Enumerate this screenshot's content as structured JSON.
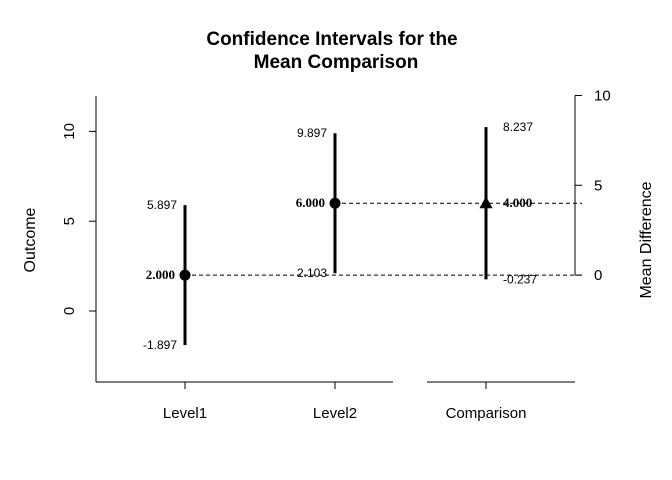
{
  "chart_data": {
    "type": "scatter",
    "title_lines": [
      "Confidence Intervals for the",
      "Mean Comparison"
    ],
    "ylabel_left": "Outcome",
    "ylabel_right": "Mean Difference",
    "ylim_left": [
      -4,
      12
    ],
    "left_ticks": [
      0,
      5,
      10
    ],
    "right_ticks": [
      0,
      5,
      10
    ],
    "right_zero_at_left": 2,
    "categories": [
      "Level1",
      "Level2",
      "Comparison"
    ],
    "points": [
      {
        "category": "Level1",
        "estimate": 2.0,
        "lower": -1.897,
        "upper": 5.897,
        "estimate_label": "2.000",
        "lower_label": "-1.897",
        "upper_label": "5.897",
        "marker": "circle",
        "axis": "left"
      },
      {
        "category": "Level2",
        "estimate": 6.0,
        "lower": 2.103,
        "upper": 9.897,
        "estimate_label": "6.000",
        "lower_label": "2.103",
        "upper_label": "9.897",
        "marker": "circle",
        "axis": "left"
      },
      {
        "category": "Comparison",
        "estimate": 4.0,
        "lower": -0.237,
        "upper": 8.237,
        "estimate_label": "4.000",
        "lower_label": "-0.237",
        "upper_label": "8.237",
        "marker": "triangle",
        "axis": "right"
      }
    ],
    "reference_lines": "dashed",
    "grid": false,
    "legend": "none"
  }
}
